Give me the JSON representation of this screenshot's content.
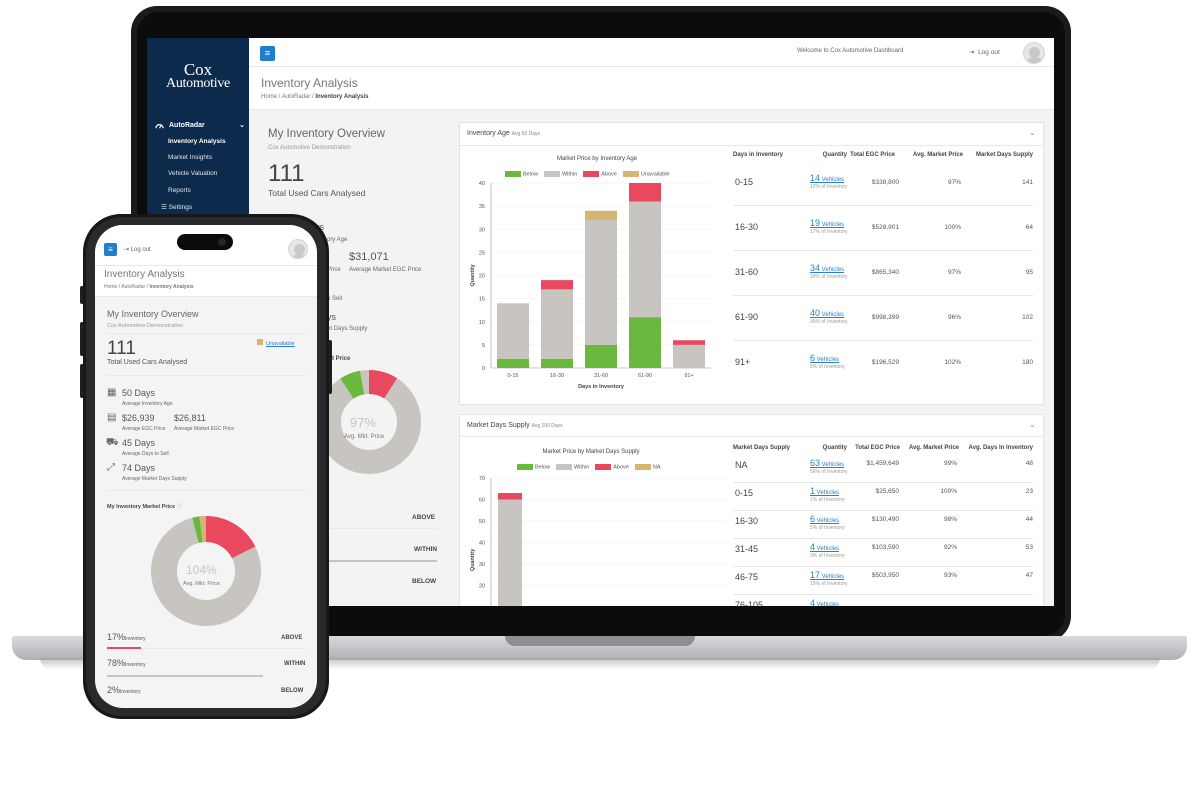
{
  "laptop": {
    "logo": {
      "line1": "Cox",
      "line2": "Automotive"
    },
    "sidebar": {
      "group": "AutoRadar",
      "items": [
        {
          "label": "Inventory Analysis"
        },
        {
          "label": "Market Insights"
        },
        {
          "label": "Vehicle Valuation"
        },
        {
          "label": "Reports"
        },
        {
          "label": "Settings"
        }
      ]
    },
    "topbar": {
      "welcome": "Welcome to Cox Automotive Dashboard",
      "logout": "Log out"
    },
    "page": {
      "title": "Inventory Analysis",
      "breadcrumb": [
        "Home",
        "AutoRadar",
        "Inventory Analysis"
      ]
    },
    "overview": {
      "title": "My Inventory Overview",
      "subtitle": "Cox Automotive Demonstration",
      "count": "111",
      "count_label": "Total Used Cars Analysed",
      "days_partial": "ys",
      "age_partial": "ory Age",
      "price_value": "$31,071",
      "price_partial": "Price",
      "price_label": "Average Market EGC Price",
      "sell_partial": "o Sell",
      "supply_days_partial": "ys",
      "supply_partial": "et Days Supply",
      "market_price_partial": "t Price",
      "donut_value": "97%",
      "donut_label": "Avg. Mkt. Price",
      "rows": [
        "ABOVE",
        "WITHIN",
        "BELOW"
      ]
    },
    "age_card": {
      "title": "Inventory Age",
      "avg": "Avg 50 Days",
      "chart_title": "Market Price by Inventory Age",
      "legend": [
        "Below",
        "Within",
        "Above",
        "Unavailable"
      ],
      "xlabel": "Days in Inventory",
      "ylabel": "Quantity",
      "table_headers": [
        "Days in Inventory",
        "Quantity",
        "Total EGC Price",
        "Avg. Market Price",
        "Market Days Supply"
      ],
      "rows": [
        {
          "range": "0-15",
          "qty": "14",
          "vehicles": "Vehicles",
          "share": "12% of Inventory",
          "egc": "$338,800",
          "mkt": "97%",
          "supply": "141"
        },
        {
          "range": "16-30",
          "qty": "19",
          "vehicles": "Vehicles",
          "share": "17% of Inventory",
          "egc": "$528,901",
          "mkt": "100%",
          "supply": "64"
        },
        {
          "range": "31-60",
          "qty": "34",
          "vehicles": "Vehicles",
          "share": "30% of Inventory",
          "egc": "$865,340",
          "mkt": "97%",
          "supply": "95"
        },
        {
          "range": "61-90",
          "qty": "40",
          "vehicles": "Vehicles",
          "share": "36% of Inventory",
          "egc": "$998,399",
          "mkt": "96%",
          "supply": "102"
        },
        {
          "range": "91+",
          "qty": "6",
          "vehicles": "Vehicles",
          "share": "5% of Inventory",
          "egc": "$196,529",
          "mkt": "102%",
          "supply": "180"
        }
      ]
    },
    "supply_card": {
      "title": "Market Days Supply",
      "avg": "Avg 100 Days",
      "chart_title": "Market Price by Market Days Supply",
      "legend": [
        "Below",
        "Within",
        "Above",
        "NA"
      ],
      "ylabel": "Quantity",
      "table_headers": [
        "Market Days Supply",
        "Quantity",
        "Total EGC Price",
        "Avg. Market Price",
        "Avg. Days In Inventory"
      ],
      "rows": [
        {
          "range": "NA",
          "qty": "63",
          "vehicles": "Vehicles",
          "share": "56% of Inventory",
          "egc": "$1,459,649",
          "mkt": "99%",
          "days": "48"
        },
        {
          "range": "0-15",
          "qty": "1",
          "vehicles": "Vehicles",
          "share": "1% of Inventory",
          "egc": "$25,650",
          "mkt": "100%",
          "days": "23"
        },
        {
          "range": "16-30",
          "qty": "6",
          "vehicles": "Vehicles",
          "share": "5% of Inventory",
          "egc": "$130,490",
          "mkt": "98%",
          "days": "44"
        },
        {
          "range": "31-45",
          "qty": "4",
          "vehicles": "Vehicles",
          "share": "3% of Inventory",
          "egc": "$103,590",
          "mkt": "92%",
          "days": "53"
        },
        {
          "range": "46-75",
          "qty": "17",
          "vehicles": "Vehicles",
          "share": "15% of Inventory",
          "egc": "$503,950",
          "mkt": "93%",
          "days": "47"
        },
        {
          "range": "76-105",
          "qty": "4",
          "vehicles": "Vehicles",
          "share": "",
          "egc": "",
          "mkt": "",
          "days": ""
        }
      ]
    }
  },
  "phone": {
    "logout": "Log out",
    "title": "Inventory Analysis",
    "breadcrumb": [
      "Home",
      "AutoRadar",
      "Inventory Analysis"
    ],
    "overview_title": "My Inventory Overview",
    "subtitle": "Cox Automotive Demonstration",
    "unavailable": "Unavailable",
    "count": "111",
    "count_label": "Total Used Cars Analysed",
    "stats": {
      "age_value": "50 Days",
      "age_label": "Average Inventory Age",
      "egc_value": "$26,939",
      "egc_label": "Average EGC Price",
      "mkt_value": "$26,811",
      "mkt_label": "Average Market EGC Price",
      "sell_value": "45 Days",
      "sell_label": "Average Days to Sell",
      "supply_value": "74 Days",
      "supply_label": "Average Market Days Supply"
    },
    "market_title": "My Inventory Market Price",
    "donut_value": "104%",
    "donut_label": "Avg. Mkt. Price",
    "rows": [
      {
        "pct": "17%",
        "label": "Inventory",
        "tag": "ABOVE"
      },
      {
        "pct": "78%",
        "label": "Inventory",
        "tag": "WITHIN"
      },
      {
        "pct": "2%",
        "label": "Inventory",
        "tag": "BELOW"
      }
    ]
  },
  "colors": {
    "below": "#6bb83f",
    "within": "#c8c5c0",
    "above": "#e8495f",
    "unavailable": "#d4b574",
    "accent": "#1f7fce",
    "sidebar": "#0c2a4b"
  },
  "chart_data": [
    {
      "type": "bar",
      "stacked": true,
      "title": "Market Price by Inventory Age",
      "categories": [
        "0-15",
        "16-30",
        "31-60",
        "61-90",
        "91+"
      ],
      "series": [
        {
          "name": "Below",
          "values": [
            2,
            2,
            5,
            11,
            0
          ]
        },
        {
          "name": "Within",
          "values": [
            12,
            15,
            27,
            25,
            5
          ]
        },
        {
          "name": "Above",
          "values": [
            0,
            2,
            0,
            4,
            1
          ]
        },
        {
          "name": "Unavailable",
          "values": [
            0,
            0,
            2,
            0,
            0
          ]
        }
      ],
      "xlabel": "Days in Inventory",
      "ylabel": "Quantity",
      "ylim": [
        0,
        40
      ],
      "yticks": [
        0,
        5,
        10,
        15,
        20,
        25,
        30,
        35,
        40
      ]
    },
    {
      "type": "bar",
      "stacked": true,
      "title": "Market Price by Market Days Supply",
      "categories": [
        "NA",
        "0-15",
        "16-30",
        "31-45",
        "46-75",
        "76-105"
      ],
      "series": [
        {
          "name": "Below",
          "values": [
            0,
            0,
            0,
            0,
            0,
            0
          ]
        },
        {
          "name": "Within",
          "values": [
            60,
            0,
            0,
            0,
            0,
            0
          ]
        },
        {
          "name": "Above",
          "values": [
            3,
            0,
            0,
            0,
            0,
            0
          ]
        },
        {
          "name": "NA",
          "values": [
            0,
            0,
            0,
            0,
            0,
            0
          ]
        }
      ],
      "ylabel": "Quantity",
      "ylim": [
        0,
        70
      ],
      "yticks": [
        20,
        30,
        40,
        50,
        60,
        70
      ]
    }
  ]
}
